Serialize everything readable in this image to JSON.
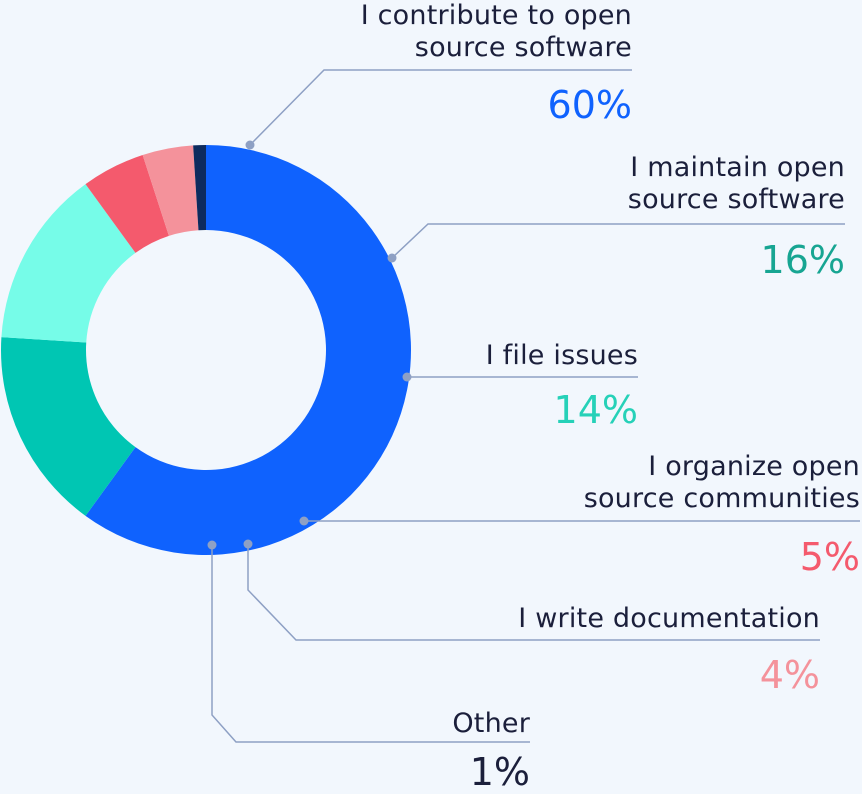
{
  "chart_data": {
    "type": "pie",
    "style": "donut",
    "slices": [
      {
        "label": "I contribute to open\nsource software",
        "value": 60,
        "display": "60%",
        "color": "#0f62fe"
      },
      {
        "label": "I maintain open\nsource software",
        "value": 16,
        "display": "16%",
        "color": "#00c6b3"
      },
      {
        "label": "I file issues",
        "value": 14,
        "display": "14%",
        "color": "#76fce8"
      },
      {
        "label": "I organize open\nsource communities",
        "value": 5,
        "display": "5%",
        "color": "#f45a6d"
      },
      {
        "label": "I write documentation",
        "value": 4,
        "display": "4%",
        "color": "#f4929b"
      },
      {
        "label": "Other",
        "value": 1,
        "display": "1%",
        "color": "#0d2b5e"
      }
    ],
    "percent_colors": [
      "#0f62fe",
      "#17a592",
      "#26d1b8",
      "#f45a6d",
      "#f4929b",
      "#1b1f3b"
    ],
    "leader_color": "#8ea0c4"
  }
}
